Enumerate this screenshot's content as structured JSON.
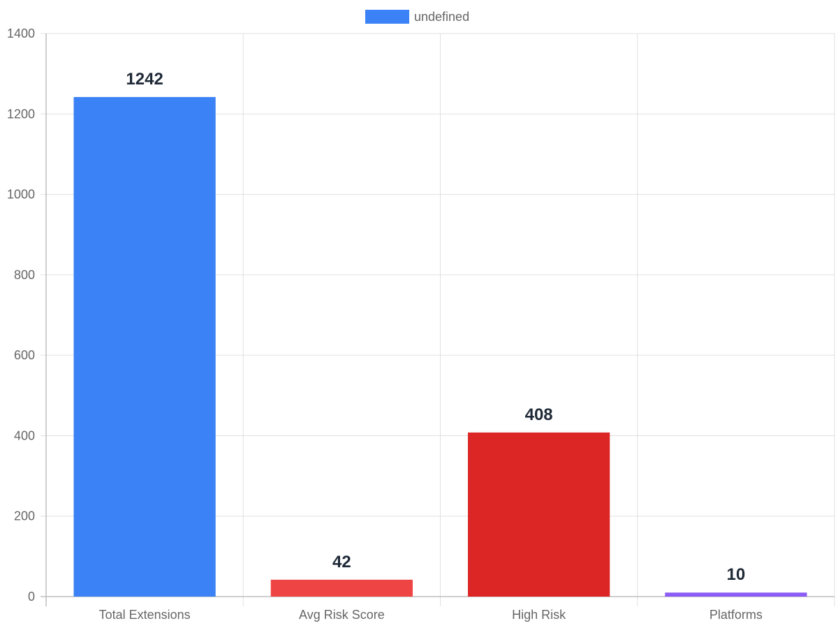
{
  "chart_data": {
    "type": "bar",
    "categories": [
      "Total Extensions",
      "Avg Risk Score",
      "High Risk",
      "Platforms"
    ],
    "values": [
      1242,
      42,
      408,
      10
    ],
    "colors": [
      "#3b82f6",
      "#ef4444",
      "#dc2626",
      "#8b5cf6"
    ],
    "data_labels": [
      "1242",
      "42",
      "408",
      "10"
    ],
    "y_ticks": [
      "0",
      "200",
      "400",
      "600",
      "800",
      "1000",
      "1200",
      "1400"
    ],
    "ylim": [
      0,
      1400
    ],
    "grid": true,
    "legend": {
      "placement": "top-center",
      "label": "undefined",
      "color": "#3b82f6"
    }
  }
}
